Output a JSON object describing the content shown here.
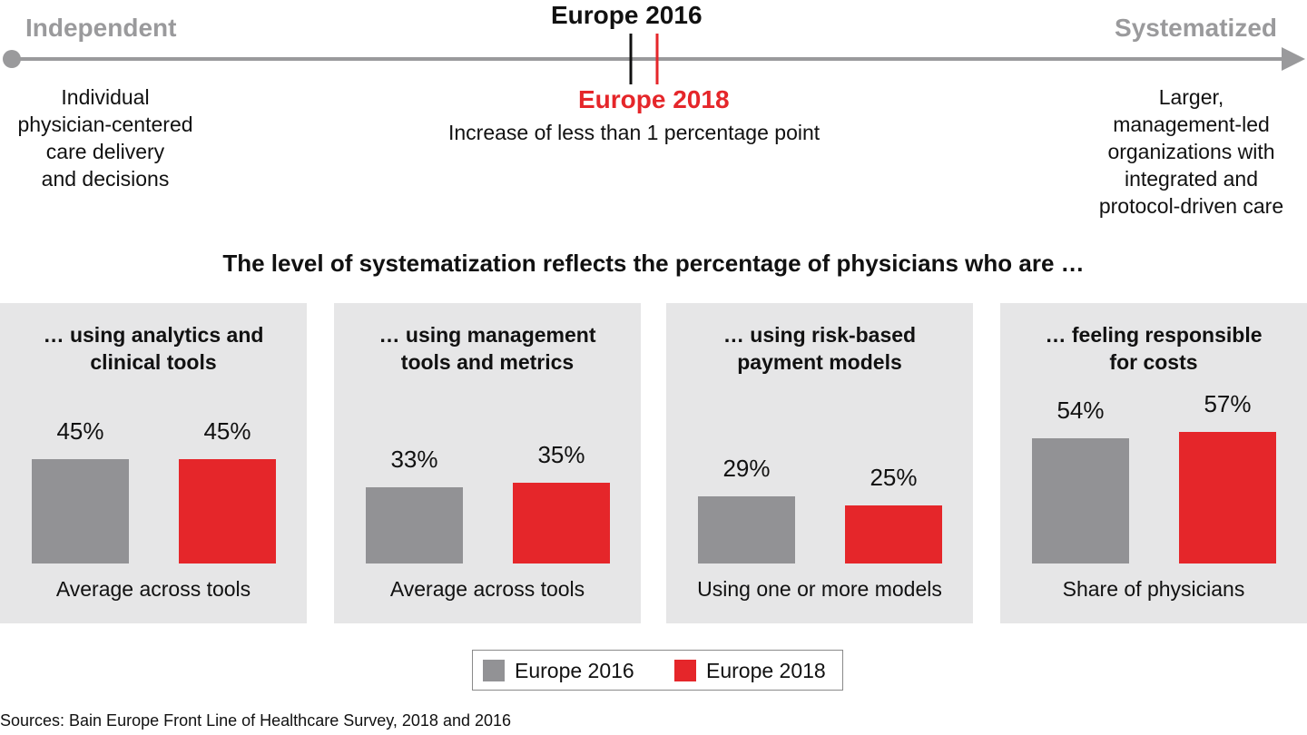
{
  "scale": {
    "left_label": "Independent",
    "right_label": "Systematized",
    "left_desc": [
      "Individual",
      "physician-centered",
      "care delivery",
      "and decisions"
    ],
    "right_desc": [
      "Larger,",
      "management-led",
      "organizations with",
      "integrated and",
      "protocol-driven care"
    ],
    "marker_2016": "Europe 2016",
    "marker_2018": "Europe 2018",
    "marker_note": "Increase of less than 1 percentage point"
  },
  "subtitle": "The level of systematization reflects the percentage of physicians who are …",
  "colors": {
    "europe_2016": "#929295",
    "europe_2018": "#e5262a",
    "panel": "#e6e6e7",
    "end_label": "#9a9a9c"
  },
  "chart_data": [
    {
      "type": "bar",
      "title": "… using analytics and clinical tools",
      "title_lines": [
        "… using analytics and",
        "clinical tools"
      ],
      "categories": [
        "Europe 2016",
        "Europe 2018"
      ],
      "values": [
        45,
        45
      ],
      "value_labels": [
        "45%",
        "45%"
      ],
      "xlabel": "Average across tools"
    },
    {
      "type": "bar",
      "title": "… using management tools and metrics",
      "title_lines": [
        "… using management",
        "tools and metrics"
      ],
      "categories": [
        "Europe 2016",
        "Europe 2018"
      ],
      "values": [
        33,
        35
      ],
      "value_labels": [
        "33%",
        "35%"
      ],
      "xlabel": "Average across tools"
    },
    {
      "type": "bar",
      "title": "… using risk-based payment models",
      "title_lines": [
        "… using risk-based",
        "payment models"
      ],
      "categories": [
        "Europe 2016",
        "Europe 2018"
      ],
      "values": [
        29,
        25
      ],
      "value_labels": [
        "29%",
        "25%"
      ],
      "xlabel": "Using one or more models"
    },
    {
      "type": "bar",
      "title": "… feeling responsible for costs",
      "title_lines": [
        "… feeling responsible",
        "for costs"
      ],
      "categories": [
        "Europe 2016",
        "Europe 2018"
      ],
      "values": [
        54,
        57
      ],
      "value_labels": [
        "54%",
        "57%"
      ],
      "xlabel": "Share of physicians"
    }
  ],
  "legend": [
    {
      "label": "Europe 2016",
      "color": "#929295"
    },
    {
      "label": "Europe 2018",
      "color": "#e5262a"
    }
  ],
  "source": "Sources: Bain Europe Front Line of Healthcare Survey, 2018 and 2016"
}
